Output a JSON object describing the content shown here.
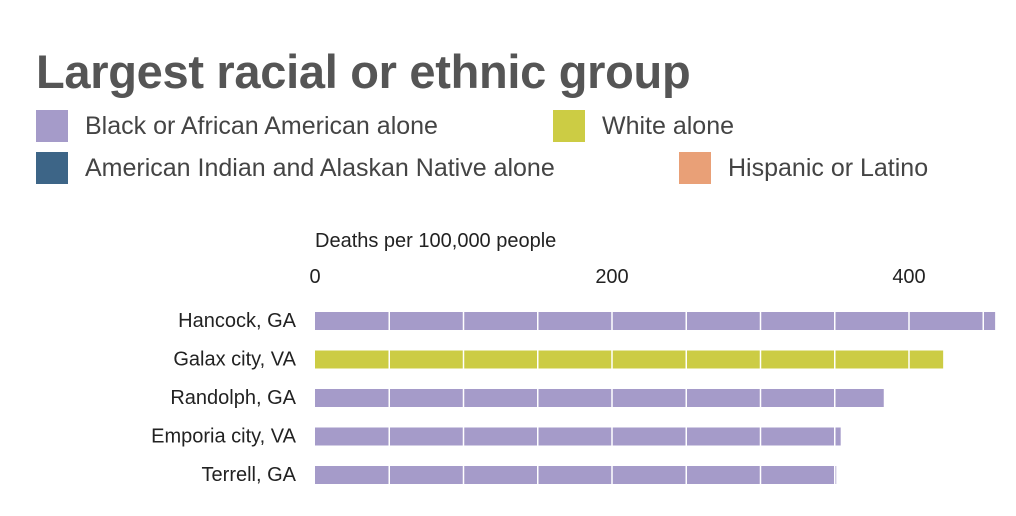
{
  "title": "Largest racial or ethnic group",
  "legend": [
    {
      "label": "Black or African American alone",
      "color": "#a59bc9"
    },
    {
      "label": "White alone",
      "color": "#cccc44"
    },
    {
      "label": "American Indian and Alaskan Native alone",
      "color": "#3d6587"
    },
    {
      "label": "Hispanic or Latino",
      "color": "#e9a077"
    }
  ],
  "chart_data": {
    "type": "bar",
    "orientation": "horizontal",
    "xlabel": "Deaths per 100,000 people",
    "xlim": [
      0,
      450
    ],
    "xticks": [
      0,
      200,
      400
    ],
    "bar_segment_size": 50,
    "categories": [
      "Hancock, GA",
      "Galax city, VA",
      "Randolph, GA",
      "Emporia city, VA",
      "Terrell, GA"
    ],
    "values": [
      458,
      423,
      383,
      354,
      351
    ],
    "groups": [
      "Black or African American alone",
      "White alone",
      "Black or African American alone",
      "Black or African American alone",
      "Black or African American alone"
    ]
  }
}
